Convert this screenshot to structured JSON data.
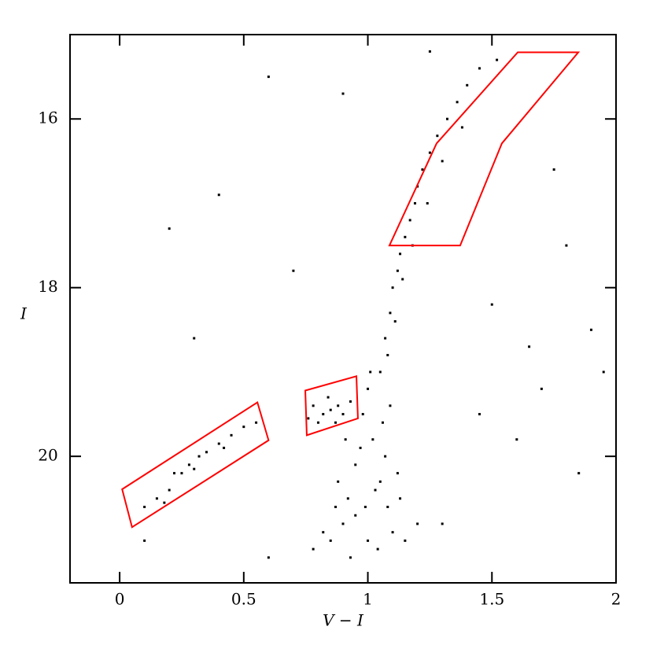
{
  "chart_data": {
    "type": "scatter",
    "x_label": "V − I",
    "y_label": "I",
    "xlim": [
      -0.2,
      2
    ],
    "xticks": [
      0,
      {
        "value": 0.5,
        "label": "0.5"
      },
      1,
      {
        "value": 1.5,
        "label": "1.5"
      },
      2
    ],
    "ylim": [
      21.5,
      15
    ],
    "yticks": [
      16,
      18,
      20
    ],
    "y_inverted": true,
    "color": "#000000",
    "x": [
      1.05,
      1.07,
      1.09,
      1.1,
      1.12,
      1.13,
      1.15,
      1.17,
      1.19,
      1.2,
      1.22,
      1.25,
      1.28,
      1.32,
      1.36,
      1.4,
      1.45,
      1.52,
      1.14,
      1.18,
      1.24,
      1.3,
      1.38,
      1.08,
      1.11,
      1.0,
      0.98,
      1.02,
      0.95,
      1.05,
      0.92,
      1.08,
      0.9,
      1.1,
      0.85,
      1.0,
      0.95,
      1.03,
      0.88,
      1.12,
      0.97,
      1.06,
      0.82,
      1.15,
      0.78,
      1.2,
      0.93,
      1.04,
      0.99,
      1.09,
      1.01,
      0.87,
      1.13,
      0.91,
      1.07,
      0.78,
      0.82,
      0.85,
      0.88,
      0.8,
      0.9,
      0.76,
      0.93,
      0.84,
      0.87,
      0.1,
      0.15,
      0.2,
      0.22,
      0.25,
      0.28,
      0.32,
      0.35,
      0.4,
      0.45,
      0.5,
      0.3,
      0.18,
      0.42,
      0.55,
      0.6,
      1.9,
      1.7,
      1.5,
      0.4,
      1.8,
      0.2,
      1.6,
      1.95,
      1.3,
      0.6,
      0.1,
      1.75,
      0.7,
      1.45,
      1.85,
      0.3,
      1.25,
      0.9,
      1.65
    ],
    "y": [
      19.0,
      18.6,
      18.3,
      18.0,
      17.8,
      17.6,
      17.4,
      17.2,
      17.0,
      16.8,
      16.6,
      16.4,
      16.2,
      16.0,
      15.8,
      15.6,
      15.4,
      15.3,
      17.9,
      17.5,
      17.0,
      16.5,
      16.1,
      18.8,
      18.4,
      19.2,
      19.5,
      19.8,
      20.1,
      20.3,
      20.5,
      20.6,
      20.8,
      20.9,
      21.0,
      21.0,
      20.7,
      20.4,
      20.3,
      20.2,
      19.9,
      19.6,
      20.9,
      21.0,
      21.1,
      20.8,
      21.2,
      21.1,
      20.6,
      19.4,
      19.0,
      20.6,
      20.5,
      19.8,
      20.0,
      19.4,
      19.5,
      19.45,
      19.4,
      19.6,
      19.5,
      19.55,
      19.35,
      19.3,
      19.6,
      20.6,
      20.5,
      20.4,
      20.2,
      20.2,
      20.1,
      20.0,
      19.95,
      19.85,
      19.75,
      19.65,
      20.15,
      20.55,
      19.9,
      19.6,
      15.5,
      18.5,
      19.2,
      18.2,
      16.9,
      17.5,
      17.3,
      19.8,
      19.0,
      20.8,
      21.2,
      21.0,
      16.6,
      17.8,
      19.5,
      20.2,
      18.6,
      15.2,
      15.7,
      18.7
    ],
    "regions": [
      {
        "color": "#ff0000",
        "x": [
          1.604,
          1.848,
          1.54,
          1.372,
          1.087,
          1.277
        ],
        "y": [
          15.21,
          15.21,
          16.29,
          17.5,
          17.5,
          16.29
        ]
      },
      {
        "color": "#ff0000",
        "x": [
          0.748,
          0.954,
          0.96,
          0.754
        ],
        "y": [
          19.22,
          19.05,
          19.55,
          19.75
        ]
      },
      {
        "color": "#ff0000",
        "x": [
          0.01,
          0.555,
          0.6,
          0.05
        ],
        "y": [
          20.39,
          19.36,
          19.81,
          20.84
        ]
      }
    ]
  }
}
